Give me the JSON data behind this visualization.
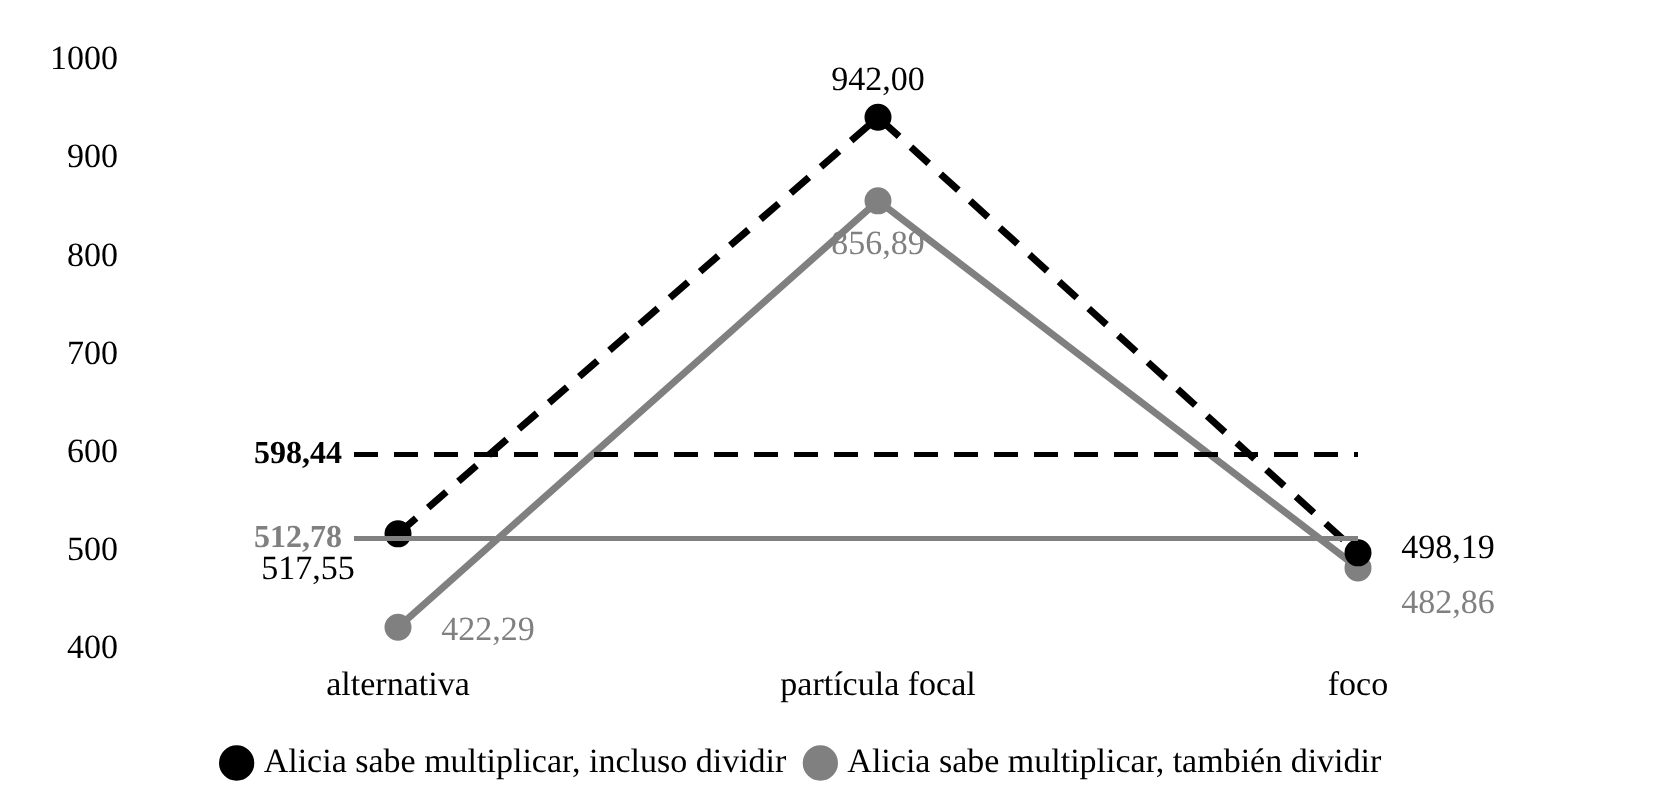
{
  "chart_data": {
    "type": "line",
    "categories": [
      "alternativa",
      "partícula focal",
      "foco"
    ],
    "series": [
      {
        "name": "Alicia sabe multiplicar, incluso dividir",
        "color": "#000000",
        "line_style": "dashed",
        "values": [
          517.55,
          942.0,
          498.19
        ],
        "value_labels": [
          "517,55",
          "942,00",
          "498,19"
        ]
      },
      {
        "name": "Alicia sabe multiplicar, también dividir",
        "color": "#808080",
        "line_style": "solid",
        "values": [
          422.29,
          856.89,
          482.86
        ],
        "value_labels": [
          "422,29",
          "856,89",
          "482,86"
        ]
      }
    ],
    "ref_lines": [
      {
        "axis": "y",
        "value": 598.44,
        "label": "598,44",
        "color": "#000000",
        "line_style": "dashed"
      },
      {
        "axis": "y",
        "value": 512.78,
        "label": "512,78",
        "color": "#808080",
        "line_style": "solid"
      }
    ],
    "ylim": [
      400,
      1000
    ],
    "yticks": [
      400,
      500,
      600,
      700,
      800,
      900,
      1000
    ],
    "grid": false,
    "legend": "bottom",
    "marker": "circle"
  }
}
